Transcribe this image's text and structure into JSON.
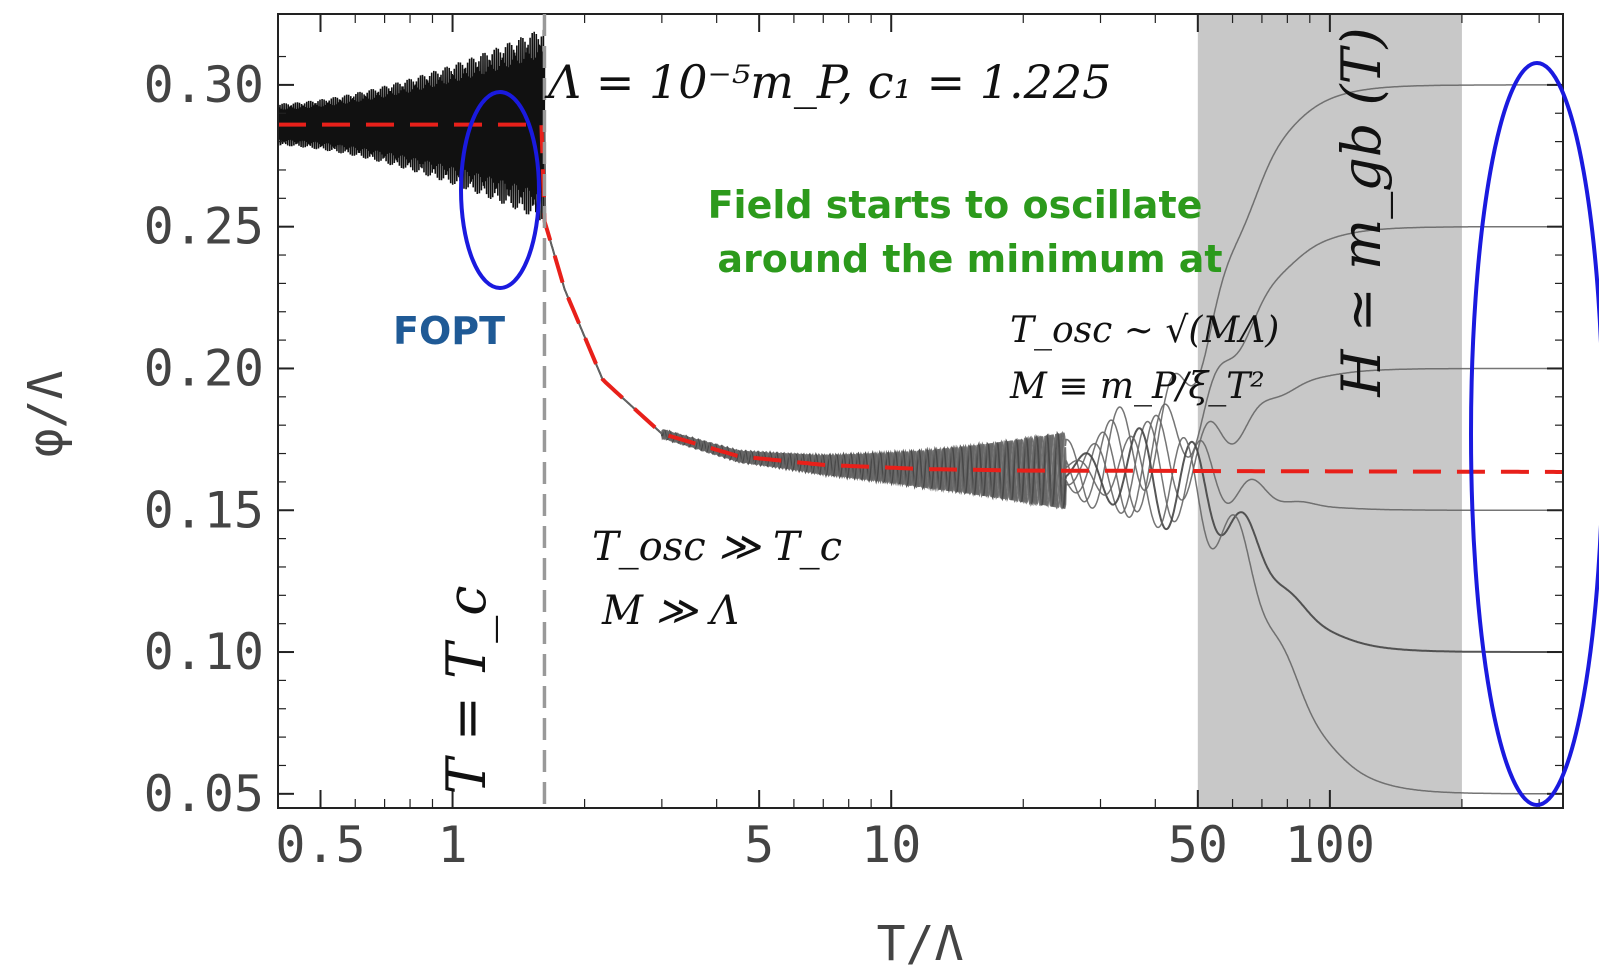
{
  "chart_data": {
    "type": "line",
    "title": "",
    "xlabel": "T/Λ",
    "ylabel": "φ/Λ",
    "x_scale": "log",
    "xlim": [
      0.4,
      340
    ],
    "ylim": [
      0.045,
      0.325
    ],
    "x_ticks": [
      {
        "value": 0.5,
        "label": "0.5"
      },
      {
        "value": 1,
        "label": "1"
      },
      {
        "value": 5,
        "label": "5"
      },
      {
        "value": 10,
        "label": "10"
      },
      {
        "value": 50,
        "label": "50"
      },
      {
        "value": 100,
        "label": "100"
      }
    ],
    "y_ticks": [
      {
        "value": 0.05,
        "label": "0.05"
      },
      {
        "value": 0.1,
        "label": "0.10"
      },
      {
        "value": 0.15,
        "label": "0.15"
      },
      {
        "value": 0.2,
        "label": "0.20"
      },
      {
        "value": 0.25,
        "label": "0.25"
      },
      {
        "value": 0.3,
        "label": "0.30"
      }
    ],
    "grid": false,
    "critical_temperature": {
      "x": 1.62,
      "label": "T = T_c"
    },
    "shaded_band": {
      "x_start": 50,
      "x_end": 200,
      "label": "H ≃ m_gb (T)",
      "color": "#c8c8c8"
    },
    "minimum_curve": {
      "name": "",
      "color": "#e8201a",
      "style": "dashed",
      "points": [
        [
          0.4,
          0.286
        ],
        [
          1.62,
          0.286
        ],
        [
          1.62,
          0.252
        ],
        [
          1.8,
          0.228
        ],
        [
          2.2,
          0.196
        ],
        [
          3.0,
          0.177
        ],
        [
          4.5,
          0.169
        ],
        [
          7.0,
          0.166
        ],
        [
          12,
          0.1645
        ],
        [
          20,
          0.164
        ],
        [
          340,
          0.1635
        ]
      ]
    },
    "series": [
      {
        "name": "",
        "final_value": 0.3,
        "color": "#666666"
      },
      {
        "name": "",
        "final_value": 0.25,
        "color": "#666666"
      },
      {
        "name": "",
        "final_value": 0.2,
        "color": "#666666"
      },
      {
        "name": "",
        "final_value": 0.15,
        "color": "#666666"
      },
      {
        "name": "",
        "final_value": 0.1,
        "color": "#444444"
      },
      {
        "name": "",
        "final_value": 0.05,
        "color": "#666666"
      }
    ],
    "annotations": {
      "params": "Λ = 10⁻⁵m_P, c₁ = 1.225",
      "oscillate_line1": "Field starts to oscillate",
      "oscillate_line2": "around the minimum at",
      "tosc_sqrt": "T_osc ∼ √(MΛ)",
      "m_def": "M ≡ m_P/ξ_T²",
      "fopt": "FOPT",
      "tosc_gg": "T_osc ≫ T_c",
      "m_gg": "M ≫ Λ"
    },
    "highlight_color": "#1a1adf"
  }
}
